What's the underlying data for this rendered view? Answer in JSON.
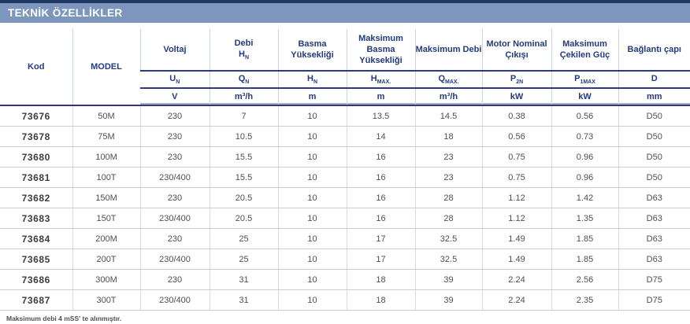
{
  "header": {
    "title": "TEKNİK ÖZELLİKLER"
  },
  "table": {
    "columns": [
      {
        "label": "Kod"
      },
      {
        "label": "MODEL"
      },
      {
        "label": "Voltaj",
        "symbol": {
          "base": "U",
          "sub": "N"
        },
        "unit": "V"
      },
      {
        "label": "Debi",
        "label_symbol": {
          "base": "H",
          "sub": "N"
        },
        "symbol": {
          "base": "Q",
          "sub": "N"
        },
        "unit": "m³/h"
      },
      {
        "label": "Basma Yüksekliği",
        "symbol": {
          "base": "H",
          "sub": "N"
        },
        "unit": "m"
      },
      {
        "label": "Maksimum Basma Yüksekliği",
        "symbol": {
          "base": "H",
          "sub": "MAX."
        },
        "unit": "m"
      },
      {
        "label": "Maksimum Debi",
        "symbol": {
          "base": "Q",
          "sub": "MAX."
        },
        "unit": "m³/h"
      },
      {
        "label": "Motor Nominal Çıkışı",
        "symbol": {
          "base": "P",
          "sub": "2N"
        },
        "unit": "kW"
      },
      {
        "label": "Maksimum Çekilen Güç",
        "symbol": {
          "base": "P",
          "sub": "1MAX"
        },
        "unit": "kW"
      },
      {
        "label": "Bağlantı çapı",
        "symbol": {
          "base": "D",
          "sub": ""
        },
        "unit": "mm"
      }
    ],
    "rows": [
      [
        "73676",
        "50M",
        "230",
        "7",
        "10",
        "13.5",
        "14.5",
        "0.38",
        "0.56",
        "D50"
      ],
      [
        "73678",
        "75M",
        "230",
        "10.5",
        "10",
        "14",
        "18",
        "0.56",
        "0.73",
        "D50"
      ],
      [
        "73680",
        "100M",
        "230",
        "15.5",
        "10",
        "16",
        "23",
        "0.75",
        "0.96",
        "D50"
      ],
      [
        "73681",
        "100T",
        "230/400",
        "15.5",
        "10",
        "16",
        "23",
        "0.75",
        "0.96",
        "D50"
      ],
      [
        "73682",
        "150M",
        "230",
        "20.5",
        "10",
        "16",
        "28",
        "1.12",
        "1.42",
        "D63"
      ],
      [
        "73683",
        "150T",
        "230/400",
        "20.5",
        "10",
        "16",
        "28",
        "1.12",
        "1.35",
        "D63"
      ],
      [
        "73684",
        "200M",
        "230",
        "25",
        "10",
        "17",
        "32.5",
        "1.49",
        "1.85",
        "D63"
      ],
      [
        "73685",
        "200T",
        "230/400",
        "25",
        "10",
        "17",
        "32.5",
        "1.49",
        "1.85",
        "D63"
      ],
      [
        "73686",
        "300M",
        "230",
        "31",
        "10",
        "18",
        "39",
        "2.24",
        "2.56",
        "D75"
      ],
      [
        "73687",
        "300T",
        "230/400",
        "31",
        "10",
        "18",
        "39",
        "2.24",
        "2.35",
        "D75"
      ]
    ]
  },
  "footnote": "Maksimum debi 4 mSS' te alınmıştır."
}
